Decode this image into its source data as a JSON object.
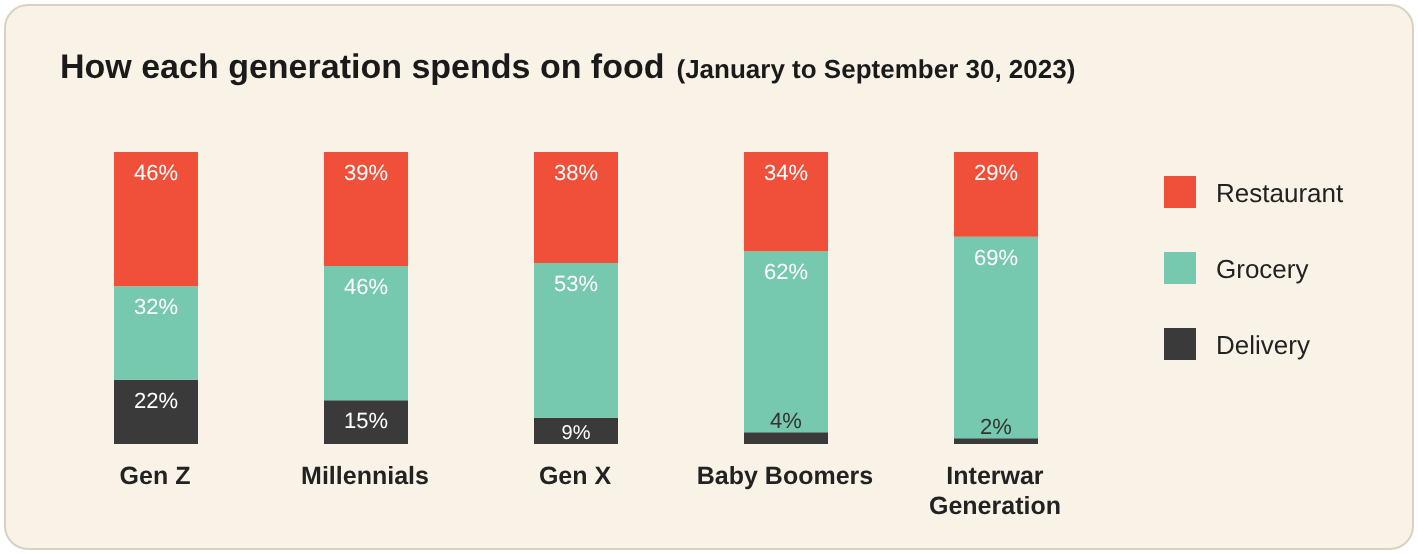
{
  "chart_data": {
    "type": "bar",
    "title": "How each generation spends on food",
    "subtitle": "(January to September 30, 2023)",
    "categories": [
      "Gen Z",
      "Millennials",
      "Gen X",
      "Baby Boomers",
      "Interwar Generation"
    ],
    "series": [
      {
        "name": "Delivery",
        "color": "#3a3a3a",
        "values": [
          22,
          15,
          9,
          4,
          2
        ],
        "value_labels": [
          "22%",
          "15%",
          "9%",
          "4%",
          "2%"
        ]
      },
      {
        "name": "Grocery",
        "color": "#76c9ae",
        "values": [
          32,
          46,
          53,
          62,
          69
        ],
        "value_labels": [
          "32%",
          "46%",
          "53%",
          "62%",
          "69%"
        ]
      },
      {
        "name": "Restaurant",
        "color": "#f0503a",
        "values": [
          46,
          39,
          38,
          34,
          29
        ],
        "value_labels": [
          "46%",
          "39%",
          "38%",
          "34%",
          "29%"
        ]
      }
    ],
    "stacked": true,
    "legend": "right",
    "grid": false,
    "tick_labels": "x"
  }
}
